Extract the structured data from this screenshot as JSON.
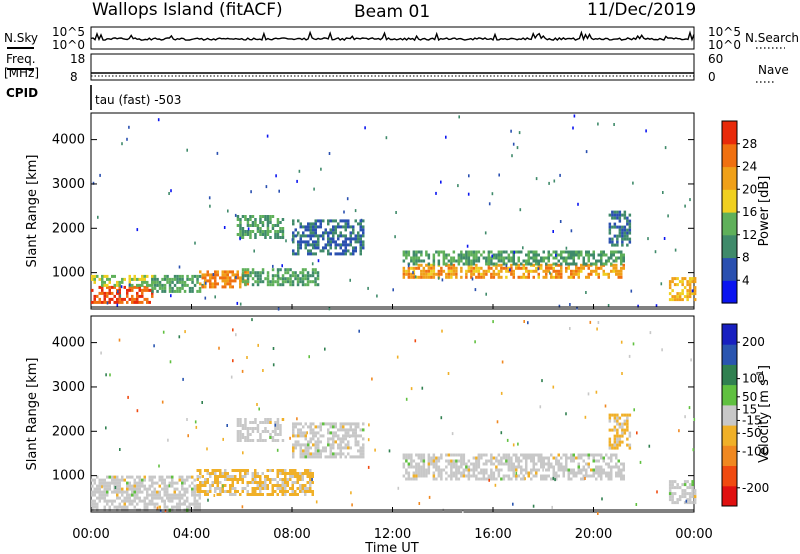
{
  "header": {
    "station": "Wallops Island (fitACF)",
    "beam": "Beam 01",
    "date": "11/Dec/2019"
  },
  "strip_labels": {
    "nsky": "N.Sky",
    "nsearch": "N.Search",
    "freq_line1": "Freq.",
    "freq_line2": "[MHz]",
    "nave": "Nave",
    "cpid": "CPID",
    "cpid_value": "tau (fast) -503",
    "noise_ticks_left": [
      "10^5",
      "10^0"
    ],
    "noise_ticks_right": [
      "10^5",
      "10^0"
    ],
    "freq_ticks": [
      "18",
      "8"
    ],
    "nave_ticks": [
      "60",
      "0"
    ]
  },
  "x_axis": {
    "label": "Time UT",
    "ticks": [
      "00:00",
      "04:00",
      "08:00",
      "12:00",
      "16:00",
      "20:00",
      "00:00"
    ]
  },
  "colors": {
    "power_scale": [
      "#0a14f0",
      "#2a50b0",
      "#3f8a6a",
      "#5fb05a",
      "#f0d020",
      "#f0a018",
      "#f07010",
      "#e82a0a"
    ],
    "velocity_scale": [
      "#e01010",
      "#f04a10",
      "#f08820",
      "#f0b028",
      "#c8c8c8",
      "#60c040",
      "#308050",
      "#2a55b0",
      "#1820c0"
    ]
  },
  "chart_data": [
    {
      "type": "heatmap",
      "panel": "power",
      "ylabel": "Slant Range [km]",
      "yticks": [
        1000,
        2000,
        3000,
        4000
      ],
      "ylim": [
        180,
        4600
      ],
      "xlim_hours": [
        0,
        24
      ],
      "colorbar_label": "Power [dB]",
      "colorbar_ticks": [
        4,
        8,
        12,
        16,
        20,
        24,
        28
      ],
      "colorbar_range": [
        0,
        32
      ],
      "regions": [
        {
          "t": [
            0.0,
            2.4
          ],
          "r": [
            300,
            700
          ],
          "value": 28
        },
        {
          "t": [
            0.0,
            2.5
          ],
          "r": [
            700,
            950
          ],
          "value": 16
        },
        {
          "t": [
            2.4,
            4.5
          ],
          "r": [
            600,
            950
          ],
          "value": 12
        },
        {
          "t": [
            4.3,
            6.2
          ],
          "r": [
            650,
            1050
          ],
          "value": 24
        },
        {
          "t": [
            6.0,
            9.0
          ],
          "r": [
            700,
            1100
          ],
          "value": 12
        },
        {
          "t": [
            5.8,
            7.6
          ],
          "r": [
            1800,
            2300
          ],
          "value": 12
        },
        {
          "t": [
            8.0,
            10.8
          ],
          "r": [
            1400,
            2200
          ],
          "value": 8
        },
        {
          "t": [
            12.4,
            21.2
          ],
          "r": [
            900,
            1200
          ],
          "value": 22
        },
        {
          "t": [
            12.4,
            21.2
          ],
          "r": [
            1200,
            1500
          ],
          "value": 12
        },
        {
          "t": [
            20.6,
            21.4
          ],
          "r": [
            1600,
            2400
          ],
          "value": 8
        },
        {
          "t": [
            23.0,
            24.0
          ],
          "r": [
            400,
            900
          ],
          "value": 20
        }
      ]
    },
    {
      "type": "heatmap",
      "panel": "velocity",
      "ylabel": "Slant Range [km]",
      "yticks": [
        1000,
        2000,
        3000,
        4000
      ],
      "ylim": [
        180,
        4600
      ],
      "xlim_hours": [
        0,
        24
      ],
      "colorbar_label": "Velocity [m s^-1]",
      "colorbar_ticks": [
        -200,
        -100,
        -50,
        -15,
        15,
        50,
        100,
        200
      ],
      "colorbar_range": [
        -250,
        250
      ],
      "regions": [
        {
          "t": [
            0.0,
            4.3
          ],
          "r": [
            250,
            1000
          ],
          "value": 0
        },
        {
          "t": [
            4.2,
            8.8
          ],
          "r": [
            550,
            1150
          ],
          "value": -40
        },
        {
          "t": [
            5.8,
            7.6
          ],
          "r": [
            1800,
            2300
          ],
          "value": 0
        },
        {
          "t": [
            8.0,
            10.8
          ],
          "r": [
            1400,
            2200
          ],
          "value": 0
        },
        {
          "t": [
            12.4,
            21.2
          ],
          "r": [
            900,
            1500
          ],
          "value": 0
        },
        {
          "t": [
            20.6,
            21.4
          ],
          "r": [
            1600,
            2400
          ],
          "value": -30
        },
        {
          "t": [
            23.0,
            24.0
          ],
          "r": [
            400,
            900
          ],
          "value": 0
        }
      ]
    }
  ]
}
